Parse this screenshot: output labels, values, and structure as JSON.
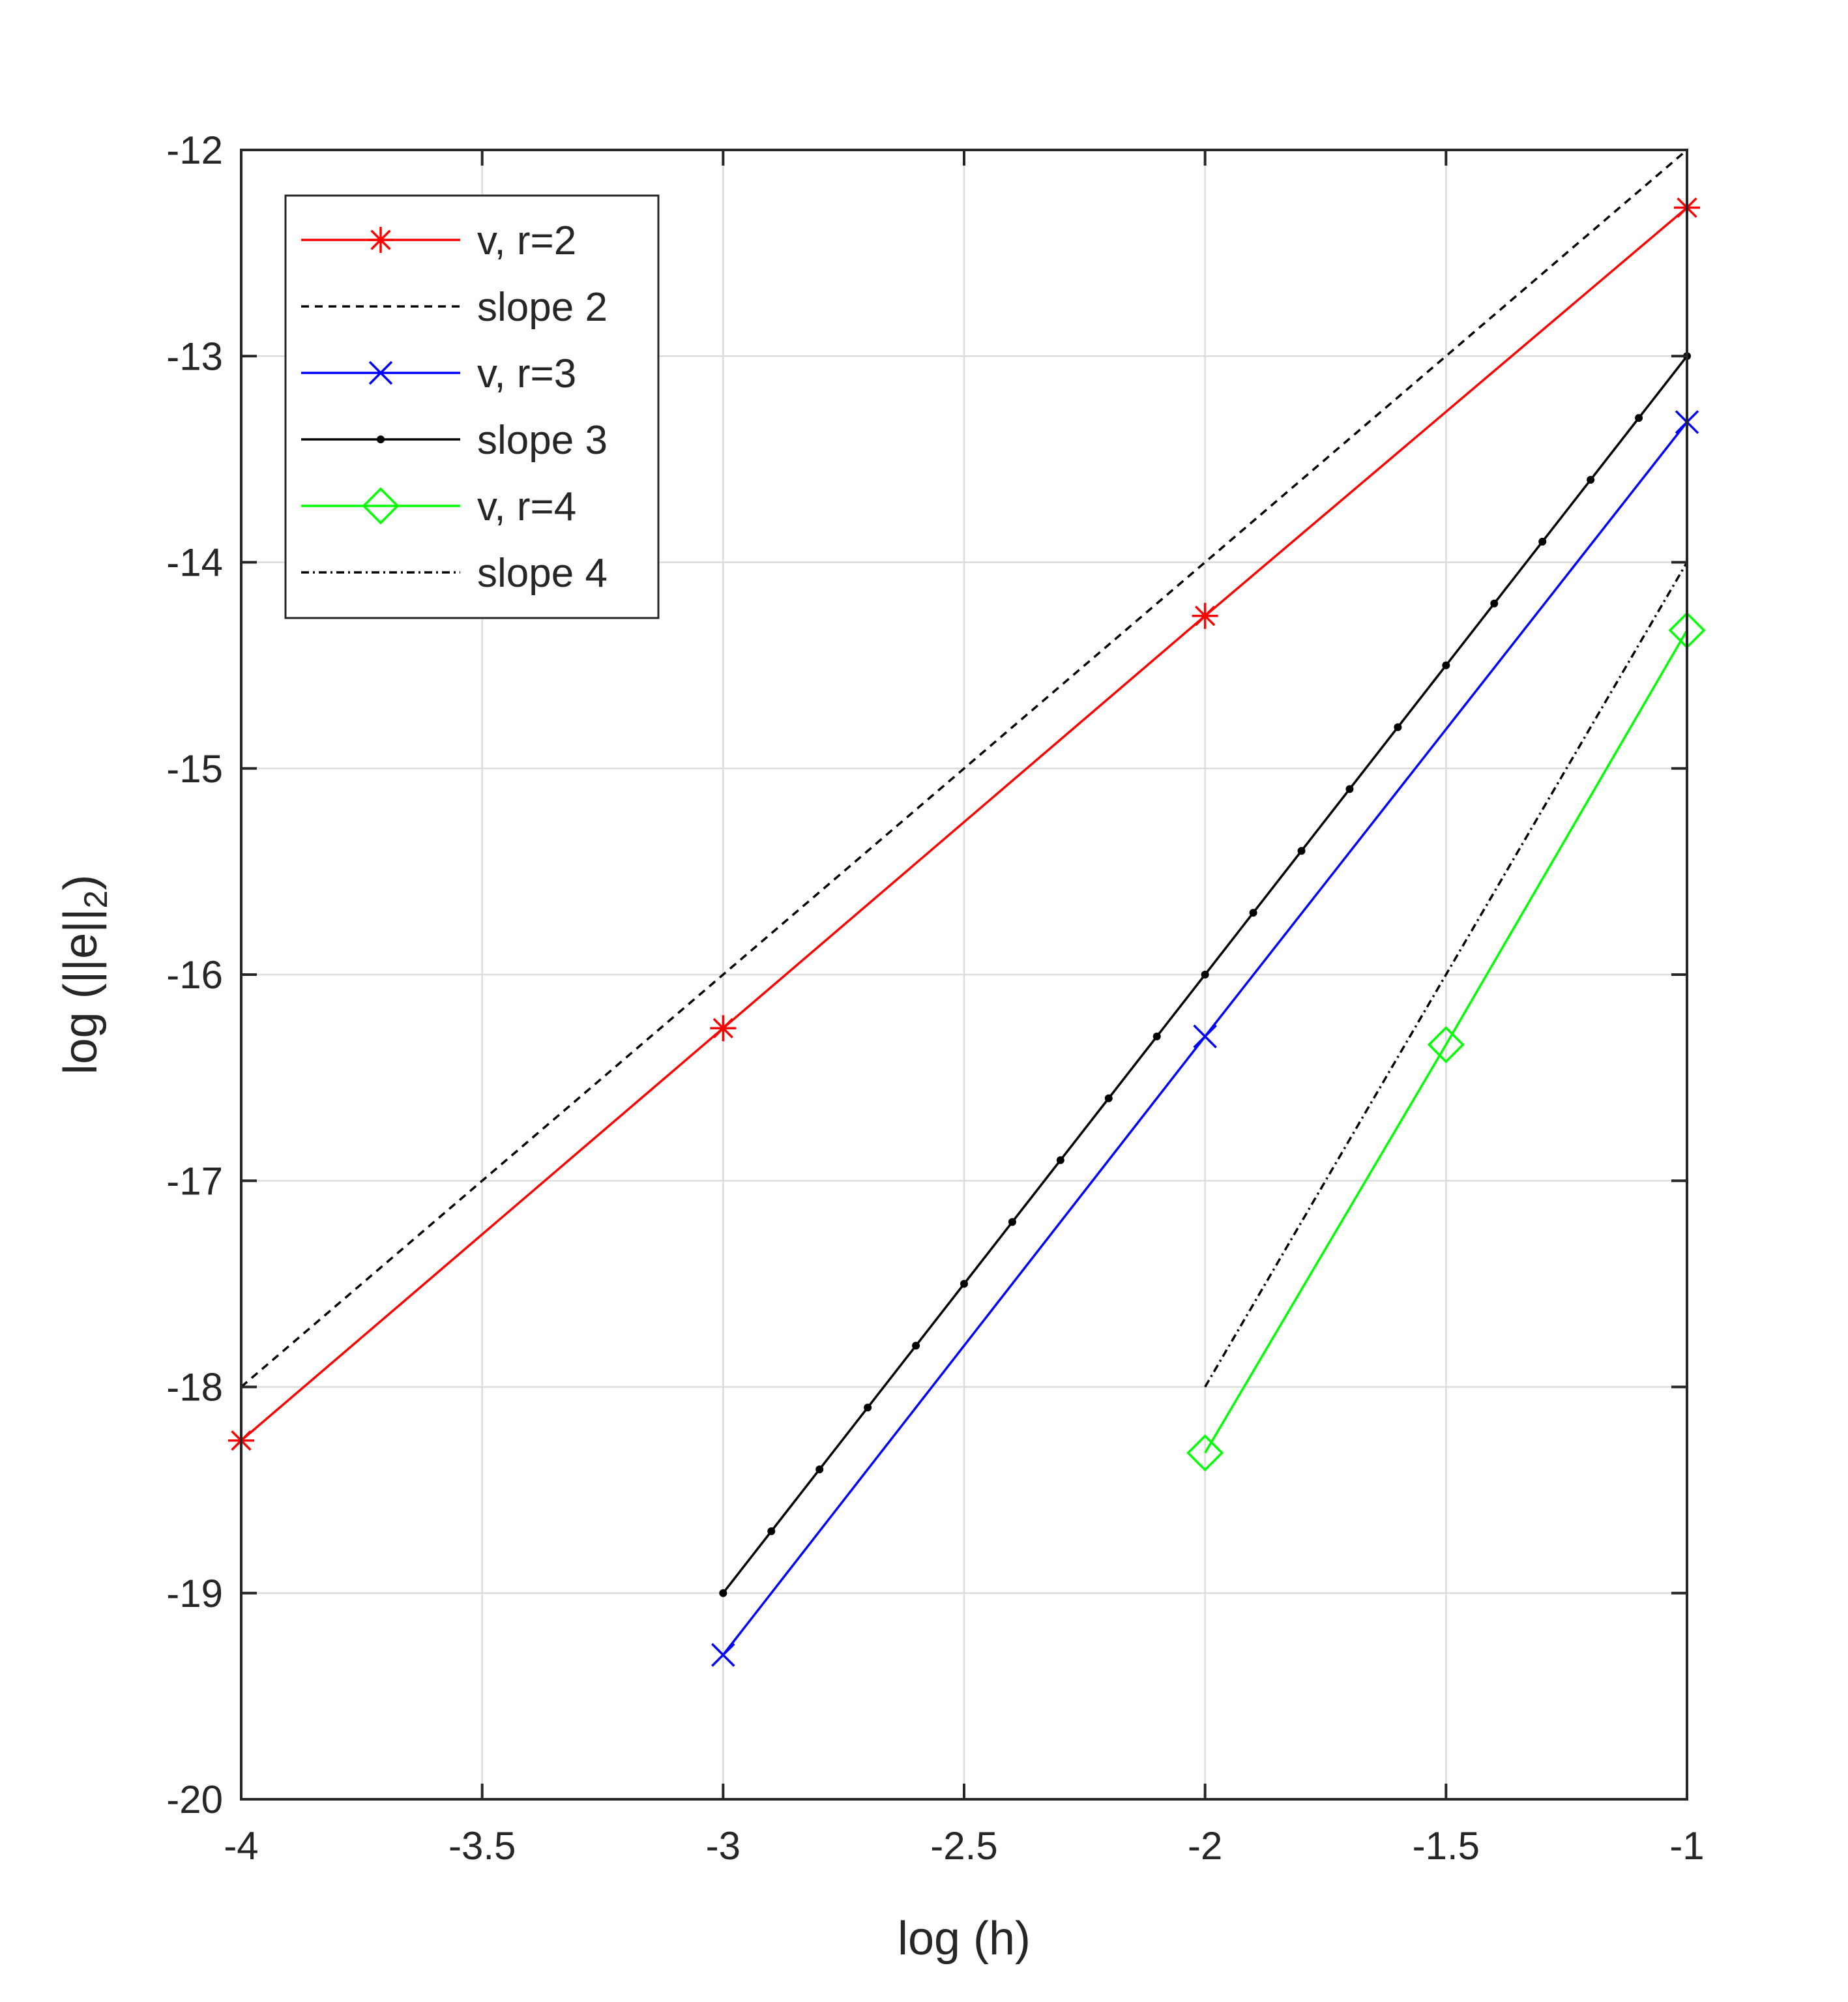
{
  "chart_data": {
    "type": "line",
    "title": "",
    "xlabel": "log (h)",
    "ylabel": {
      "main": "log (||e||",
      "subscript": "2",
      "tail": ")"
    },
    "xlim": [
      -4,
      -1
    ],
    "ylim": [
      -20,
      -12
    ],
    "xticks": [
      -4,
      -3.5,
      -3,
      -2.5,
      -2,
      -1.5,
      -1
    ],
    "xtick_labels": [
      "-4",
      "-3.5",
      "-3",
      "-2.5",
      "-2",
      "-1.5",
      "-1"
    ],
    "yticks": [
      -20,
      -19,
      -18,
      -17,
      -16,
      -15,
      -14,
      -13,
      -12
    ],
    "ytick_labels": [
      "-20",
      "-19",
      "-18",
      "-17",
      "-16",
      "-15",
      "-14",
      "-13",
      "-12"
    ],
    "grid": true,
    "legend_location": "top-left",
    "series": [
      {
        "name": "v, r=2",
        "color": "#ff0000",
        "line": "solid",
        "marker": "asterisk",
        "x": [
          -4,
          -3,
          -2,
          -1
        ],
        "y": [
          -18.26,
          -16.26,
          -14.26,
          -12.28
        ]
      },
      {
        "name": "slope 2",
        "color": "#000000",
        "line": "dashed",
        "marker": "none",
        "x": [
          -4,
          -1
        ],
        "y": [
          -18,
          -12
        ]
      },
      {
        "name": "v, r=3",
        "color": "#0000ff",
        "line": "solid",
        "marker": "x",
        "x": [
          -3,
          -2,
          -1
        ],
        "y": [
          -19.3,
          -16.3,
          -13.32
        ]
      },
      {
        "name": "slope 3",
        "color": "#000000",
        "line": "solid",
        "marker": "dot",
        "x": [
          -3,
          -2.9,
          -2.8,
          -2.7,
          -2.6,
          -2.5,
          -2.4,
          -2.3,
          -2.2,
          -2.1,
          -2,
          -1.9,
          -1.8,
          -1.7,
          -1.6,
          -1.5,
          -1.4,
          -1.3,
          -1.2,
          -1.1,
          -1
        ],
        "y": [
          -19,
          -18.7,
          -18.4,
          -18.1,
          -17.8,
          -17.5,
          -17.2,
          -16.9,
          -16.6,
          -16.3,
          -16,
          -15.7,
          -15.4,
          -15.1,
          -14.8,
          -14.5,
          -14.2,
          -13.9,
          -13.6,
          -13.3,
          -13
        ]
      },
      {
        "name": "v, r=4",
        "color": "#00ff00",
        "line": "solid",
        "marker": "diamond",
        "x": [
          -2,
          -1.5,
          -1
        ],
        "y": [
          -18.32,
          -16.34,
          -14.33
        ]
      },
      {
        "name": "slope 4",
        "color": "#000000",
        "line": "dashdot",
        "marker": "none",
        "x": [
          -2,
          -1
        ],
        "y": [
          -18,
          -14
        ]
      }
    ]
  }
}
